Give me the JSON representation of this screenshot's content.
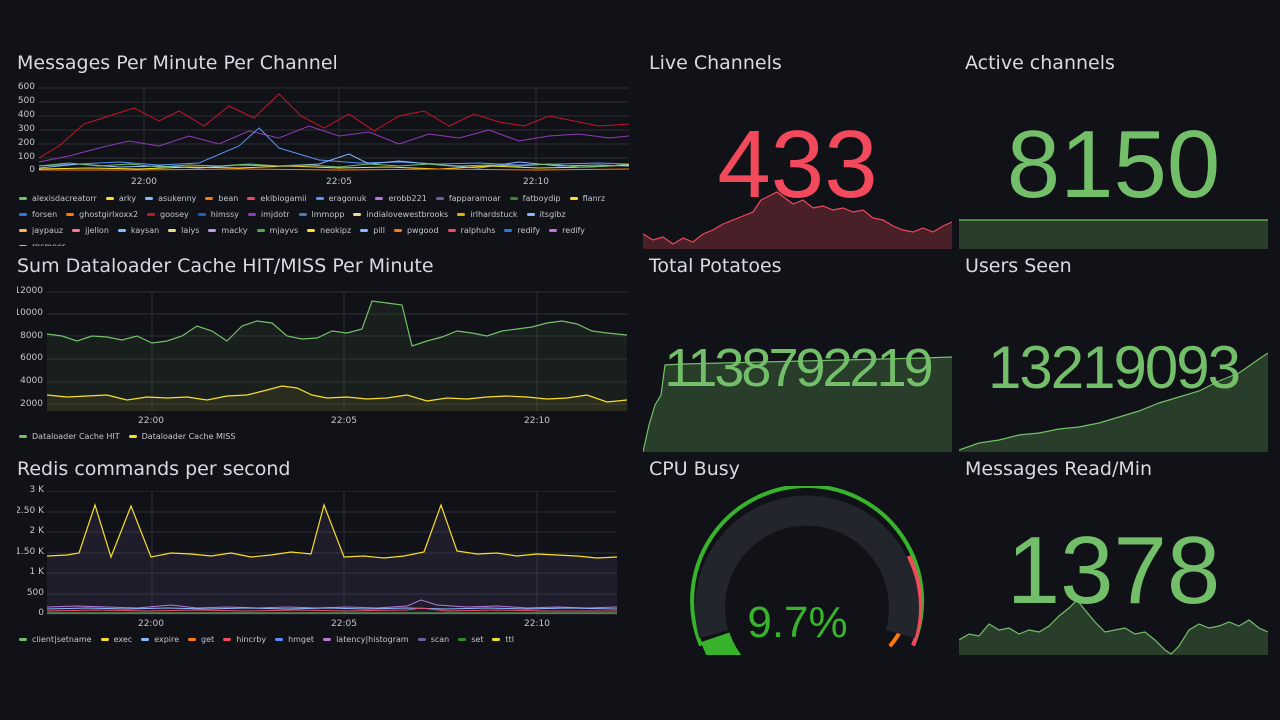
{
  "colors": {
    "bg": "#111217",
    "green": "#73bf69",
    "red": "#f2495c",
    "yellow": "#fade2a",
    "grid": "#2c2e35"
  },
  "messages_per_minute": {
    "title": "Messages Per Minute Per Channel",
    "yticks": [
      "600",
      "500",
      "400",
      "300",
      "200",
      "100",
      "0"
    ],
    "xticks": [
      "22:00",
      "22:05",
      "22:10"
    ],
    "legend": [
      {
        "label": "alexisdacreatorr",
        "color": "#73bf69"
      },
      {
        "label": "arky",
        "color": "#fade2a"
      },
      {
        "label": "asukenny",
        "color": "#8ab8ff"
      },
      {
        "label": "bean",
        "color": "#ff780a"
      },
      {
        "label": "ekibiogamii",
        "color": "#f2495c"
      },
      {
        "label": "eragonuk",
        "color": "#5794f2"
      },
      {
        "label": "erobb221",
        "color": "#b877d9"
      },
      {
        "label": "fapparamoar",
        "color": "#705da0"
      },
      {
        "label": "fatboydip",
        "color": "#37872d"
      },
      {
        "label": "flanrz",
        "color": "#fade2a"
      },
      {
        "label": "forsen",
        "color": "#3274d9"
      },
      {
        "label": "ghostgirlxoxx2",
        "color": "#ff780a"
      },
      {
        "label": "goosey",
        "color": "#c4162a"
      },
      {
        "label": "himssy",
        "color": "#1f60c4"
      },
      {
        "label": "imjdotr",
        "color": "#8f3bb8"
      },
      {
        "label": "lmmopp",
        "color": "#447ebc"
      },
      {
        "label": "indialovewestbrooks",
        "color": "#f4d598"
      },
      {
        "label": "irlhardstuck",
        "color": "#e0b400"
      },
      {
        "label": "itsgibz",
        "color": "#8ab8ff"
      },
      {
        "label": "jaypauz",
        "color": "#ffb357"
      },
      {
        "label": "jjellon",
        "color": "#ff7383"
      },
      {
        "label": "kaysan",
        "color": "#8ab8ff"
      },
      {
        "label": "laiys",
        "color": "#f4d598"
      },
      {
        "label": "macky",
        "color": "#ca95e5"
      },
      {
        "label": "mjayvs",
        "color": "#56a64b"
      },
      {
        "label": "neokipz",
        "color": "#fade2a"
      },
      {
        "label": "pill",
        "color": "#8ab8ff"
      },
      {
        "label": "pwgood",
        "color": "#ff780a"
      },
      {
        "label": "ralphuhs",
        "color": "#f2495c"
      },
      {
        "label": "redify",
        "color": "#3274d9"
      },
      {
        "label": "redify",
        "color": "#b877d9"
      },
      {
        "label": "rnsmeer",
        "color": "#96d98d"
      }
    ]
  },
  "dataloader": {
    "title": "Sum Dataloader Cache HIT/MISS Per Minute",
    "yticks": [
      "12000",
      "10000",
      "8000",
      "6000",
      "4000",
      "2000"
    ],
    "xticks": [
      "22:00",
      "22:05",
      "22:10"
    ],
    "legend": [
      {
        "label": "Dataloader Cache HIT",
        "color": "#73bf69"
      },
      {
        "label": "Dataloader Cache MISS",
        "color": "#fade2a"
      }
    ]
  },
  "redis": {
    "title": "Redis commands per second",
    "yticks": [
      "3 K",
      "2.50 K",
      "2 K",
      "1.50 K",
      "1 K",
      "500",
      "0"
    ],
    "xticks": [
      "22:00",
      "22:05",
      "22:10"
    ],
    "legend": [
      {
        "label": "client|setname",
        "color": "#73bf69"
      },
      {
        "label": "exec",
        "color": "#fade2a"
      },
      {
        "label": "expire",
        "color": "#8ab8ff"
      },
      {
        "label": "get",
        "color": "#ff780a"
      },
      {
        "label": "hincrby",
        "color": "#f2495c"
      },
      {
        "label": "hmget",
        "color": "#5794f2"
      },
      {
        "label": "latency|histogram",
        "color": "#b877d9"
      },
      {
        "label": "scan",
        "color": "#705da0"
      },
      {
        "label": "set",
        "color": "#37872d"
      },
      {
        "label": "ttl",
        "color": "#fade2a"
      }
    ]
  },
  "stats": {
    "live_channels": {
      "title": "Live Channels",
      "value": "433",
      "color": "#f2495c"
    },
    "active_channels": {
      "title": "Active channels",
      "value": "8150",
      "color": "#73bf69"
    },
    "total_potatoes": {
      "title": "Total Potatoes",
      "value": "1138792219",
      "color": "#73bf69"
    },
    "users_seen": {
      "title": "Users Seen",
      "value": "13219093",
      "color": "#73bf69"
    },
    "cpu_busy": {
      "title": "CPU Busy",
      "value": "9.7%",
      "percent": 9.7,
      "color": "#37b32c"
    },
    "messages_read": {
      "title": "Messages Read/Min",
      "value": "1378",
      "color": "#73bf69"
    }
  }
}
